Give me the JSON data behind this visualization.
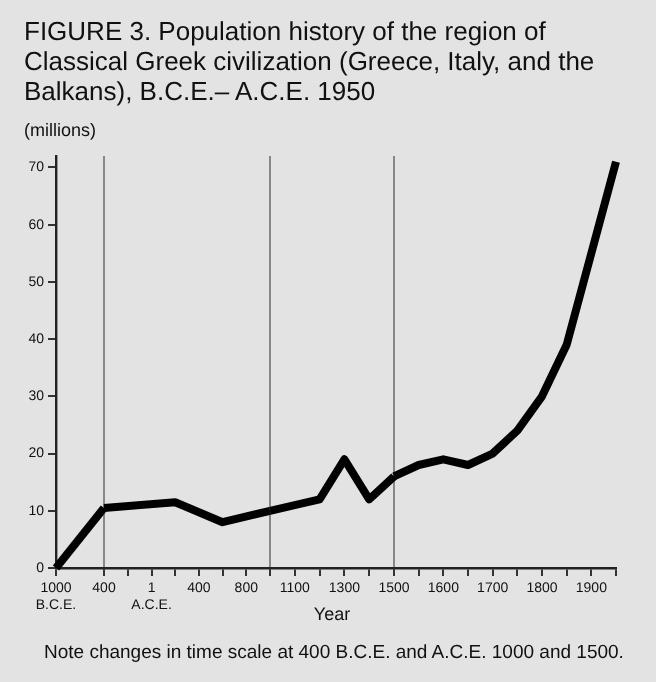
{
  "chart_data": [
    {
      "type": "line",
      "title": "FIGURE 3. Population history of the region of Classical Greek civilization (Greece, Italy, and the Balkans), B.C.E.– A.C.E. 1950",
      "ylabel": "(millions)",
      "annotations": [
        "Note changes in time scale at 400 B.C.E. and A.C.E. 1000 and 1500."
      ],
      "x": [
        -1000,
        -400
      ],
      "series": [
        {
          "color": "#000000",
          "values": [
            0,
            10.5
          ]
        }
      ],
      "xlim": [
        -1000,
        -400
      ],
      "xticks": [
        {
          "value": -1000,
          "label": "1000\nB.C.E."
        },
        {
          "value": -400,
          "label": "400"
        }
      ],
      "ylim": [
        0,
        72
      ],
      "yticks": [
        0,
        10,
        20,
        30,
        40,
        50,
        60,
        70
      ],
      "grid": false,
      "legend": false,
      "ref_lines": [
        {
          "axis": "x",
          "value": -400,
          "color": "#888888"
        }
      ]
    },
    {
      "type": "line",
      "x": [
        -400,
        200,
        600,
        1000
      ],
      "series": [
        {
          "color": "#000000",
          "values": [
            10.5,
            11.5,
            8,
            10
          ]
        }
      ],
      "xlim": [
        -400,
        1000
      ],
      "xticks": [
        {
          "value": -200,
          "label": null
        },
        {
          "value": 1,
          "label": "1\nA.C.E."
        },
        {
          "value": 200,
          "label": null
        },
        400,
        {
          "value": 600,
          "label": null
        },
        800
      ],
      "ylim": [
        0,
        72
      ],
      "tick_labels": "x",
      "ref_lines": [
        {
          "axis": "x",
          "value": 1000,
          "color": "#888888"
        }
      ]
    },
    {
      "type": "line",
      "xlabel": "Year",
      "x": [
        1000,
        1200,
        1300,
        1400,
        1500
      ],
      "series": [
        {
          "color": "#000000",
          "values": [
            10,
            12,
            19,
            12,
            16
          ]
        }
      ],
      "xlim": [
        1000,
        1500
      ],
      "xticks": [
        {
          "value": 1000,
          "label": null
        },
        1100,
        {
          "value": 1200,
          "label": null
        },
        1300,
        {
          "value": 1400,
          "label": null
        }
      ],
      "ylim": [
        0,
        72
      ],
      "tick_labels": "x",
      "ref_lines": [
        {
          "axis": "x",
          "value": 1500,
          "color": "#888888"
        }
      ]
    },
    {
      "type": "line",
      "x": [
        1500,
        1550,
        1600,
        1650,
        1700,
        1750,
        1800,
        1850,
        1900,
        1950
      ],
      "series": [
        {
          "color": "#000000",
          "values": [
            16,
            18,
            19,
            18,
            20,
            24,
            30,
            39,
            55,
            71
          ]
        }
      ],
      "xlim": [
        1500,
        1950
      ],
      "xticks": [
        1500,
        {
          "value": 1550,
          "label": null
        },
        1600,
        {
          "value": 1650,
          "label": null
        },
        1700,
        {
          "value": 1750,
          "label": null
        },
        1800,
        {
          "value": 1850,
          "label": null
        },
        1900,
        {
          "value": 1950,
          "label": null
        }
      ],
      "ylim": [
        0,
        72
      ],
      "tick_labels": "x"
    }
  ]
}
